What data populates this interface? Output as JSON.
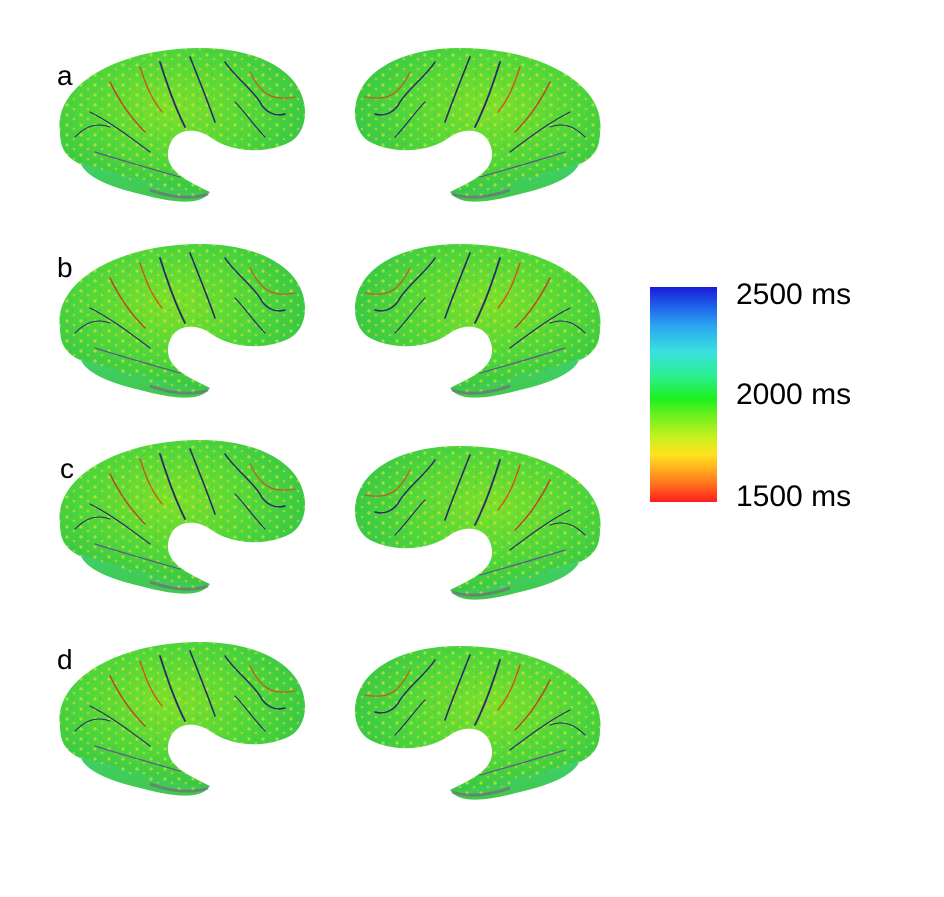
{
  "panels": [
    {
      "label": "a"
    },
    {
      "label": "b"
    },
    {
      "label": "c"
    },
    {
      "label": "d"
    }
  ],
  "colorbar": {
    "max_label": "2500 ms",
    "mid_label": "2000 ms",
    "min_label": "1500 ms",
    "colors": [
      "#1a1ad6",
      "#39e0e0",
      "#1ef01e",
      "#ffe21e",
      "#ff1e1e"
    ]
  }
}
